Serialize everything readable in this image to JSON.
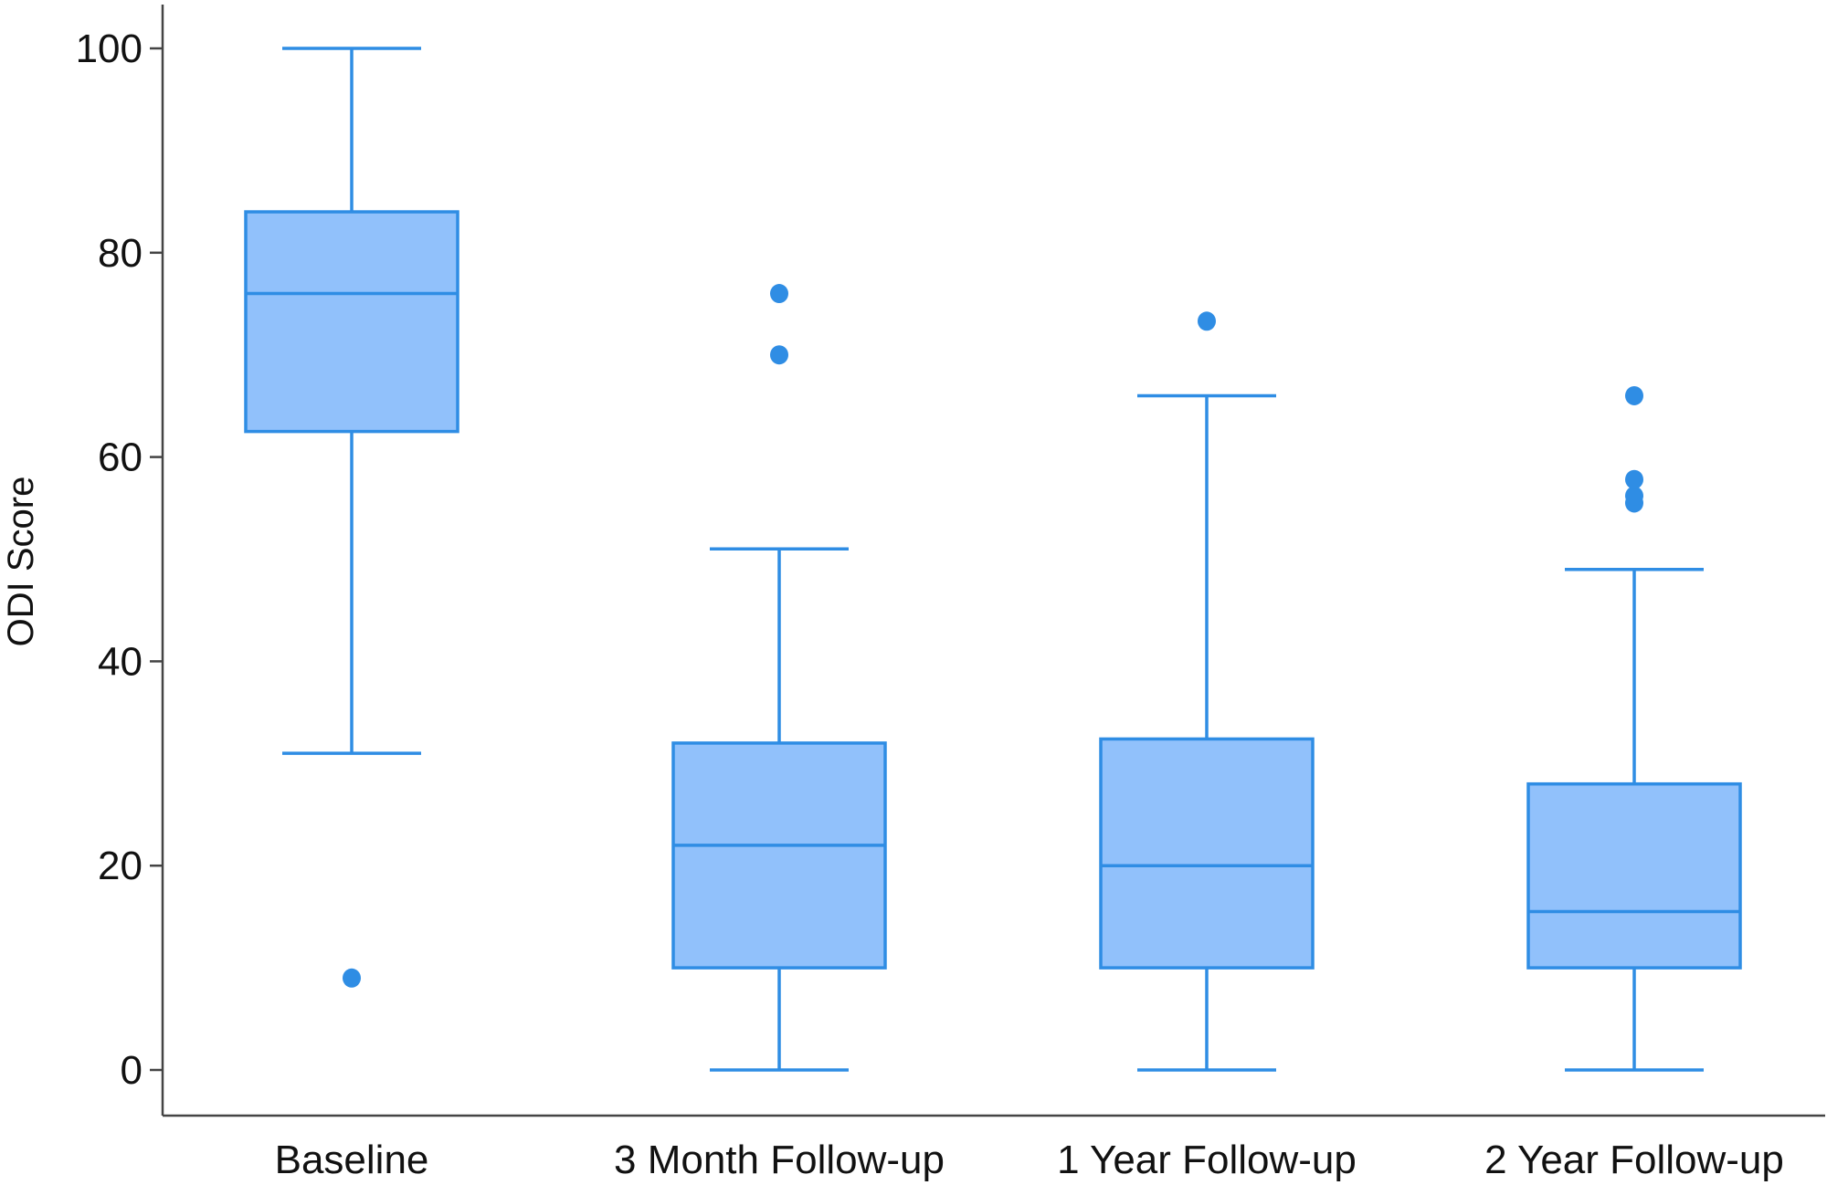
{
  "chart_data": {
    "type": "box",
    "ylabel": "ODI Score",
    "xlabel": "",
    "ylim": [
      0,
      105
    ],
    "yticks": [
      0,
      20,
      40,
      60,
      80,
      100
    ],
    "grid": false,
    "colors": {
      "box_fill": "#91c1fb",
      "stroke": "#2f8de4",
      "outlier": "#2f8de4",
      "axis": "#444444"
    },
    "categories": [
      "Baseline",
      "3 Month Follow-up",
      "1 Year Follow-up",
      "2 Year Follow-up"
    ],
    "boxes": [
      {
        "category": "Baseline",
        "whisker_low": 31,
        "q1": 62.5,
        "median": 76,
        "q3": 84,
        "whisker_high": 100,
        "outliers": [
          9
        ]
      },
      {
        "category": "3 Month Follow-up",
        "whisker_low": 0,
        "q1": 10,
        "median": 22,
        "q3": 32,
        "whisker_high": 51,
        "outliers": [
          70,
          76
        ]
      },
      {
        "category": "1 Year Follow-up",
        "whisker_low": 0,
        "q1": 10,
        "median": 20,
        "q3": 32.4,
        "whisker_high": 66,
        "outliers": [
          73.3
        ]
      },
      {
        "category": "2 Year Follow-up",
        "whisker_low": 0,
        "q1": 10,
        "median": 15.5,
        "q3": 28,
        "whisker_high": 49,
        "outliers": [
          55.5,
          56.2,
          57.8,
          66
        ]
      }
    ]
  }
}
